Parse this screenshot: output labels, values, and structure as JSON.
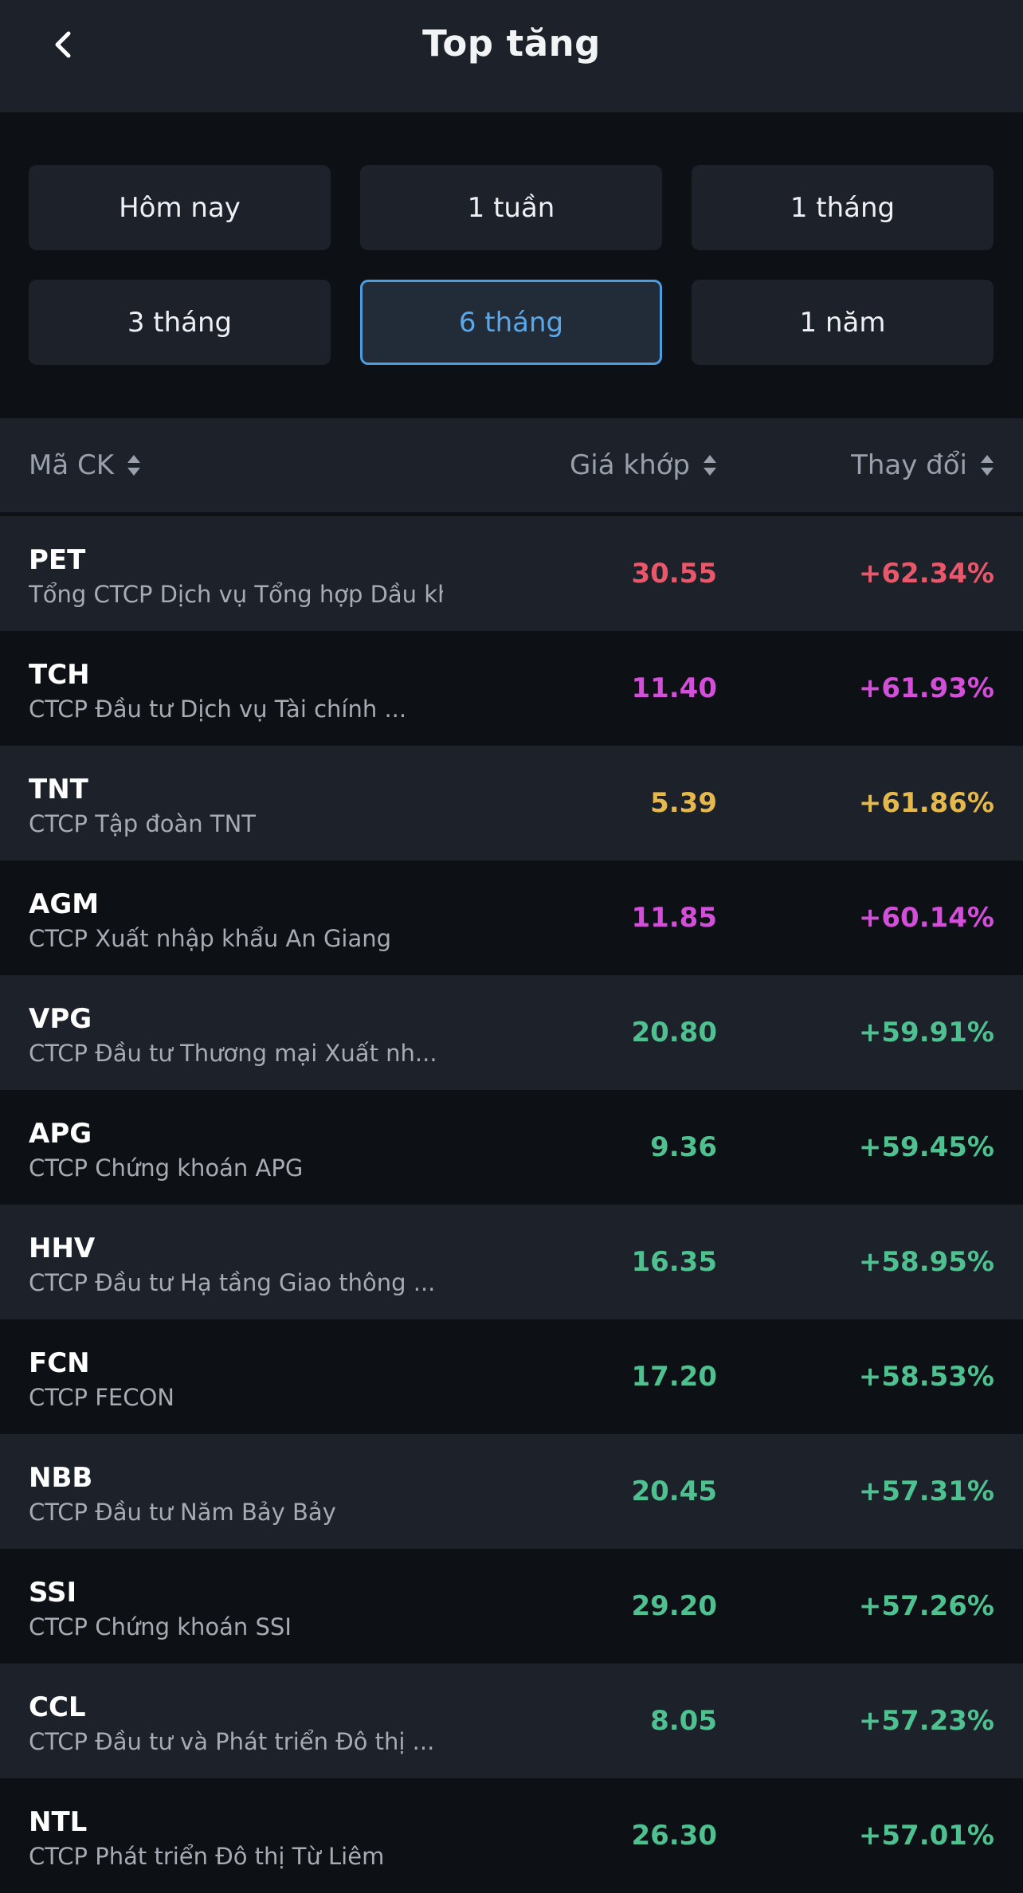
{
  "header": {
    "title": "Top tăng",
    "back_icon": "chevron-left-icon"
  },
  "filters": [
    {
      "label": "Hôm nay",
      "active": false
    },
    {
      "label": "1 tuần",
      "active": false
    },
    {
      "label": "1 tháng",
      "active": false
    },
    {
      "label": "3 tháng",
      "active": false
    },
    {
      "label": "6 tháng",
      "active": true
    },
    {
      "label": "1 năm",
      "active": false
    }
  ],
  "table": {
    "headers": {
      "symbol": "Mã CK",
      "price": "Giá khớp",
      "change": "Thay đổi"
    },
    "sort_icon": "sort-updown-icon",
    "rows": [
      {
        "symbol": "PET",
        "name": "Tổng CTCP Dịch vụ Tổng hợp Dầu khí",
        "price": "30.55",
        "change": "+62.34%",
        "color": "#e8576a"
      },
      {
        "symbol": "TCH",
        "name": "CTCP Đầu tư Dịch vụ Tài chính ...",
        "price": "11.40",
        "change": "+61.93%",
        "color": "#d44fd9"
      },
      {
        "symbol": "TNT",
        "name": "CTCP Tập đoàn TNT",
        "price": "5.39",
        "change": "+61.86%",
        "color": "#e5b84c"
      },
      {
        "symbol": "AGM",
        "name": "CTCP Xuất nhập khẩu An Giang",
        "price": "11.85",
        "change": "+60.14%",
        "color": "#d44fd9"
      },
      {
        "symbol": "VPG",
        "name": "CTCP Đầu tư Thương mại Xuất nh...",
        "price": "20.80",
        "change": "+59.91%",
        "color": "#4fc08f"
      },
      {
        "symbol": "APG",
        "name": "CTCP Chứng khoán APG",
        "price": "9.36",
        "change": "+59.45%",
        "color": "#4fc08f"
      },
      {
        "symbol": "HHV",
        "name": "CTCP Đầu tư Hạ tầng Giao thông ...",
        "price": "16.35",
        "change": "+58.95%",
        "color": "#4fc08f"
      },
      {
        "symbol": "FCN",
        "name": "CTCP FECON",
        "price": "17.20",
        "change": "+58.53%",
        "color": "#4fc08f"
      },
      {
        "symbol": "NBB",
        "name": "CTCP Đầu tư Năm Bảy Bảy",
        "price": "20.45",
        "change": "+57.31%",
        "color": "#4fc08f"
      },
      {
        "symbol": "SSI",
        "name": "CTCP Chứng khoán SSI",
        "price": "29.20",
        "change": "+57.26%",
        "color": "#4fc08f"
      },
      {
        "symbol": "CCL",
        "name": "CTCP Đầu tư và Phát triển Đô thị ...",
        "price": "8.05",
        "change": "+57.23%",
        "color": "#4fc08f"
      },
      {
        "symbol": "NTL",
        "name": "CTCP Phát triển Đô thị Từ Liêm",
        "price": "26.30",
        "change": "+57.01%",
        "color": "#4fc08f"
      }
    ]
  }
}
